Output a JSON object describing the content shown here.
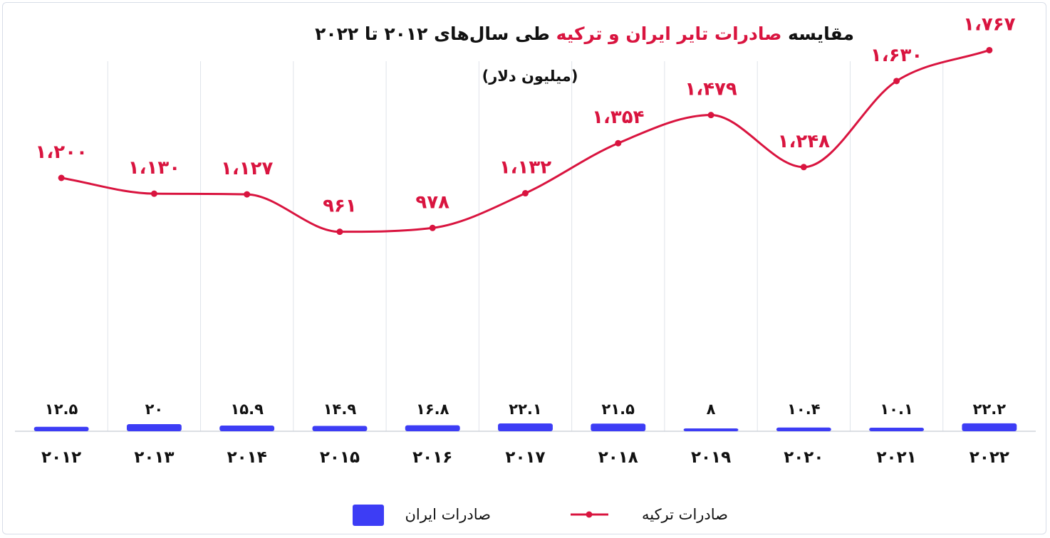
{
  "chart_data": {
    "type": "bar",
    "title": {
      "prefix": "مقایسه",
      "highlight": "صادرات تایر ایران و ترکیه",
      "suffix": "طی سال‌های ۲۰۱۲ تا ۲۰۲۲"
    },
    "unit_label": "(میلیون دلار)",
    "categories": [
      "2012",
      "2013",
      "2014",
      "2015",
      "2016",
      "2017",
      "2018",
      "2019",
      "2020",
      "2021",
      "2022"
    ],
    "category_labels": [
      "۲۰۱۲",
      "۲۰۱۳",
      "۲۰۱۴",
      "۲۰۱۵",
      "۲۰۱۶",
      "۲۰۱۷",
      "۲۰۱۸",
      "۲۰۱۹",
      "۲۰۲۰",
      "۲۰۲۱",
      "۲۰۲۲"
    ],
    "series": [
      {
        "name": "صادرات ایران",
        "kind": "bar",
        "color": "#3d3df5",
        "values": [
          12.5,
          20,
          15.9,
          14.9,
          16.8,
          22.1,
          21.5,
          8,
          10.4,
          10.1,
          22.2
        ],
        "value_labels": [
          "۱۲.۵",
          "۲۰",
          "۱۵.۹",
          "۱۴.۹",
          "۱۶.۸",
          "۲۲.۱",
          "۲۱.۵",
          "۸",
          "۱۰.۴",
          "۱۰.۱",
          "۲۲.۲"
        ]
      },
      {
        "name": "صادرات ترکیه",
        "kind": "line",
        "color": "#d9143f",
        "values": [
          1200,
          1130,
          1127,
          961,
          978,
          1132,
          1354,
          1479,
          1248,
          1630,
          1767
        ],
        "value_labels": [
          "۱،۲۰۰",
          "۱،۱۳۰",
          "۱،۱۲۷",
          "۹۶۱",
          "۹۷۸",
          "۱،۱۳۲",
          "۱،۳۵۴",
          "۱،۴۷۹",
          "۱،۲۴۸",
          "۱،۶۳۰",
          "۱،۷۶۷"
        ]
      }
    ],
    "legend_position": "bottom-center",
    "grid": true
  }
}
